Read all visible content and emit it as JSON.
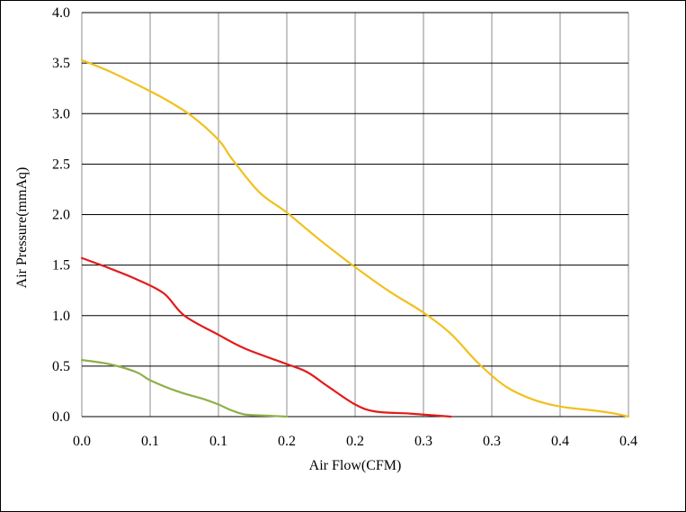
{
  "chart_data": {
    "type": "line",
    "title": "",
    "xlabel": "Air Flow(CFM)",
    "ylabel": "Air Pressure(mmAq)",
    "xlim": [
      0,
      0.4
    ],
    "ylim": [
      0,
      4.0
    ],
    "x_tick_labels": [
      "0.0",
      "0.1",
      "0.1",
      "0.2",
      "0.2",
      "0.3",
      "0.3",
      "0.4",
      "0.4"
    ],
    "y_tick_labels": [
      "0.0",
      "0.5",
      "1.0",
      "1.5",
      "2.0",
      "2.5",
      "3.0",
      "3.5",
      "4.0"
    ],
    "grid": true,
    "legend": "none",
    "series": [
      {
        "color": "#f2c01e",
        "points": [
          [
            0.0,
            3.53
          ],
          [
            0.02,
            3.42
          ],
          [
            0.04,
            3.29
          ],
          [
            0.06,
            3.15
          ],
          [
            0.08,
            2.98
          ],
          [
            0.1,
            2.74
          ],
          [
            0.11,
            2.55
          ],
          [
            0.13,
            2.22
          ],
          [
            0.15,
            2.02
          ],
          [
            0.175,
            1.74
          ],
          [
            0.2,
            1.48
          ],
          [
            0.225,
            1.24
          ],
          [
            0.25,
            1.03
          ],
          [
            0.27,
            0.82
          ],
          [
            0.29,
            0.53
          ],
          [
            0.31,
            0.3
          ],
          [
            0.33,
            0.17
          ],
          [
            0.35,
            0.1
          ],
          [
            0.375,
            0.06
          ],
          [
            0.39,
            0.03
          ],
          [
            0.4,
            0.0
          ]
        ]
      },
      {
        "color": "#e31b1b",
        "points": [
          [
            0.0,
            1.57
          ],
          [
            0.02,
            1.47
          ],
          [
            0.04,
            1.36
          ],
          [
            0.06,
            1.22
          ],
          [
            0.075,
            1.0
          ],
          [
            0.1,
            0.81
          ],
          [
            0.12,
            0.67
          ],
          [
            0.15,
            0.52
          ],
          [
            0.165,
            0.44
          ],
          [
            0.18,
            0.3
          ],
          [
            0.2,
            0.12
          ],
          [
            0.215,
            0.05
          ],
          [
            0.24,
            0.03
          ],
          [
            0.26,
            0.01
          ],
          [
            0.27,
            0.0
          ]
        ]
      },
      {
        "color": "#8fb04a",
        "points": [
          [
            0.0,
            0.56
          ],
          [
            0.02,
            0.52
          ],
          [
            0.04,
            0.44
          ],
          [
            0.05,
            0.36
          ],
          [
            0.07,
            0.25
          ],
          [
            0.09,
            0.17
          ],
          [
            0.1,
            0.12
          ],
          [
            0.11,
            0.06
          ],
          [
            0.12,
            0.02
          ],
          [
            0.135,
            0.01
          ],
          [
            0.15,
            0.0
          ]
        ]
      }
    ]
  }
}
